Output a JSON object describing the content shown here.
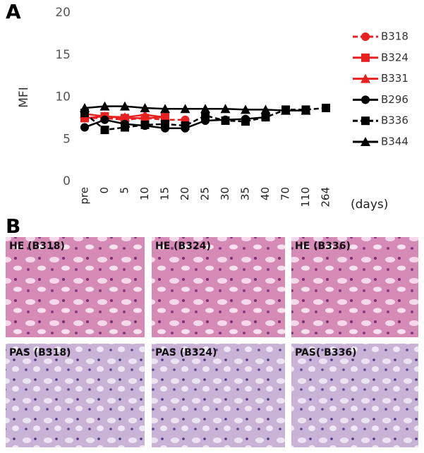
{
  "chart_data": {
    "type": "line",
    "panel_label": "A",
    "ylabel": "MFI",
    "xlabel": "(days)",
    "categories": [
      "pre",
      "0",
      "5",
      "10",
      "15",
      "20",
      "25",
      "30",
      "35",
      "40",
      "70",
      "110",
      "264"
    ],
    "ylim": [
      0,
      20
    ],
    "yticks": [
      0,
      5,
      10,
      15,
      20
    ],
    "grid": false,
    "legend": "right",
    "series": [
      {
        "name": "B318",
        "color": "#e8201f",
        "marker": "circle",
        "dashed": true,
        "values": [
          7.5,
          7.5,
          7.3,
          7.5,
          7.3,
          7.3,
          null,
          null,
          null,
          null,
          null,
          null,
          null
        ]
      },
      {
        "name": "B324",
        "color": "#e8201f",
        "marker": "square",
        "dashed": false,
        "values": [
          7.5,
          7.7,
          7.5,
          7.5,
          7.6,
          null,
          null,
          null,
          null,
          null,
          null,
          null,
          null
        ]
      },
      {
        "name": "B331",
        "color": "#e8201f",
        "marker": "triangle",
        "dashed": false,
        "values": [
          8.0,
          7.7,
          7.6,
          7.9,
          7.6,
          null,
          null,
          null,
          null,
          null,
          null,
          null,
          null
        ]
      },
      {
        "name": "B296",
        "color": "#000000",
        "marker": "circle",
        "dashed": false,
        "values": [
          6.4,
          7.3,
          6.8,
          6.6,
          6.3,
          6.3,
          7.2,
          7.3,
          7.4,
          7.6,
          null,
          null,
          null
        ]
      },
      {
        "name": "B336",
        "color": "#000000",
        "marker": "square",
        "dashed": true,
        "values": [
          8.1,
          6.1,
          6.4,
          6.7,
          6.8,
          6.6,
          7.8,
          7.2,
          7.1,
          7.6,
          8.5,
          8.5,
          8.7
        ]
      },
      {
        "name": "B344",
        "color": "#000000",
        "marker": "triangle",
        "dashed": false,
        "values": [
          8.7,
          8.9,
          8.9,
          8.7,
          8.6,
          8.6,
          8.6,
          8.6,
          8.5,
          8.5,
          8.4,
          8.4,
          null
        ]
      }
    ]
  },
  "panel_b": {
    "label": "B",
    "images": [
      {
        "caption": "HE (B318)"
      },
      {
        "caption": "HE (B324)"
      },
      {
        "caption": "HE (B336)"
      },
      {
        "caption": "PAS (B318)"
      },
      {
        "caption": "PAS (B324)"
      },
      {
        "caption": "PAS( B336)"
      }
    ]
  }
}
